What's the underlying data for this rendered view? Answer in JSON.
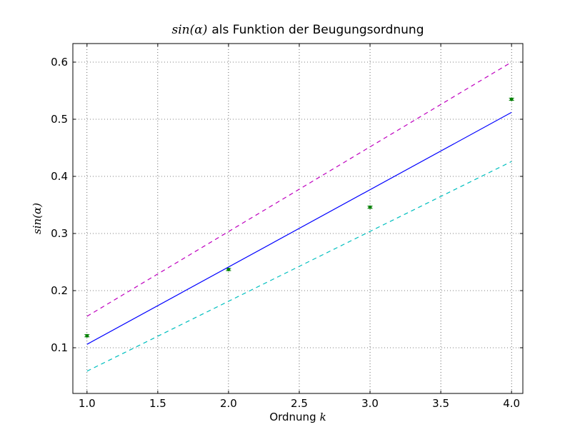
{
  "chart_data": {
    "type": "scatter",
    "title": {
      "math": "sin(α)",
      "text": "als Funktion der Beugungsordnung"
    },
    "xlabel": {
      "text": "Ordnung",
      "math": "k"
    },
    "ylabel": {
      "math": "sin(α)"
    },
    "xlim": [
      0.9,
      4.08
    ],
    "ylim": [
      0.02,
      0.6325
    ],
    "xticks": [
      1.0,
      1.5,
      2.0,
      2.5,
      3.0,
      3.5,
      4.0
    ],
    "xtick_labels": [
      "1.0",
      "1.5",
      "2.0",
      "2.5",
      "3.0",
      "3.5",
      "4.0"
    ],
    "yticks": [
      0.1,
      0.2,
      0.3,
      0.4,
      0.5,
      0.6
    ],
    "ytick_labels": [
      "0.1",
      "0.2",
      "0.3",
      "0.4",
      "0.5",
      "0.6"
    ],
    "grid": true,
    "grid_style": "dotted",
    "legend": "none",
    "series": [
      {
        "kind": "errorbar",
        "color": "#008000",
        "x": [
          1,
          2,
          3,
          4
        ],
        "y": [
          0.121,
          0.237,
          0.346,
          0.535
        ],
        "yerr": [
          0.002,
          0.002,
          0.002,
          0.002
        ]
      },
      {
        "kind": "line",
        "style": "solid",
        "color": "#0000ff",
        "x": [
          1,
          4
        ],
        "y": [
          0.106,
          0.512
        ]
      },
      {
        "kind": "line",
        "style": "dashed",
        "color": "#bf00bf",
        "x": [
          1,
          4
        ],
        "y": [
          0.155,
          0.6
        ]
      },
      {
        "kind": "line",
        "style": "dashed",
        "color": "#00bfbf",
        "x": [
          1,
          4
        ],
        "y": [
          0.059,
          0.426
        ]
      }
    ]
  }
}
